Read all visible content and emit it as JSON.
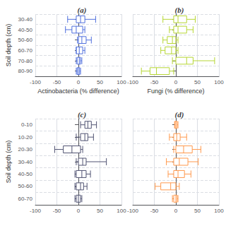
{
  "chart_data": [
    {
      "type": "boxplot",
      "orientation": "horizontal",
      "title": "(a)",
      "xlabel": "Actinobacteria (% difference)",
      "ylabel": "Soil depth (cm)",
      "categories": [
        "30-40",
        "40-50",
        "50-60",
        "60-70",
        "70-80",
        "80-90"
      ],
      "boxes": [
        {
          "whislo": -25,
          "q1": -5,
          "med": 5,
          "q3": 15,
          "whishi": 40
        },
        {
          "whislo": -30,
          "q1": -15,
          "med": -5,
          "q3": 10,
          "whishi": 15
        },
        {
          "whislo": -2,
          "q1": 0,
          "med": 8,
          "q3": 18,
          "whishi": 30
        },
        {
          "whislo": -5,
          "q1": -5,
          "med": 2,
          "q3": 10,
          "whishi": 15
        },
        {
          "whislo": -5,
          "q1": -3,
          "med": 2,
          "q3": 5,
          "whishi": 8
        },
        {
          "whislo": -5,
          "q1": -3,
          "med": 0,
          "q3": 3,
          "whishi": 5
        }
      ],
      "xlim": [
        -100,
        100
      ],
      "xticks": [
        -100,
        -50,
        0,
        50,
        100
      ],
      "grid": true
    },
    {
      "type": "boxplot",
      "orientation": "horizontal",
      "title": "(b)",
      "xlabel": "Fungi (% difference)",
      "categories": [
        "30-40",
        "40-50",
        "50-60",
        "60-70",
        "70-80",
        "80-90"
      ],
      "boxes": [
        {
          "whislo": -30,
          "q1": -5,
          "med": 5,
          "q3": 25,
          "whishi": 45
        },
        {
          "whislo": -15,
          "q1": -5,
          "med": 5,
          "q3": 25,
          "whishi": 40
        },
        {
          "whislo": -30,
          "q1": -20,
          "med": -8,
          "q3": 0,
          "whishi": 5
        },
        {
          "whislo": -35,
          "q1": -25,
          "med": -10,
          "q3": 0,
          "whishi": 5
        },
        {
          "whislo": -8,
          "q1": 0,
          "med": 25,
          "q3": 40,
          "whishi": 90
        },
        {
          "whislo": -80,
          "q1": -60,
          "med": -45,
          "q3": -15,
          "whishi": -5
        }
      ],
      "xlim": [
        -100,
        100
      ],
      "xticks": [
        -100,
        -50,
        0,
        50,
        100
      ],
      "grid": true,
      "tick_labels": "x"
    },
    {
      "type": "boxplot",
      "orientation": "horizontal",
      "title": "(c)",
      "ylabel": "Soil depth (cm)",
      "categories": [
        "0-10",
        "10-20",
        "20-30",
        "30-40",
        "40-50",
        "50-60",
        "60-70"
      ],
      "boxes": [
        {
          "whislo": 5,
          "q1": 15,
          "med": 22,
          "q3": 30,
          "whishi": 42
        },
        {
          "whislo": -5,
          "q1": 5,
          "med": 15,
          "q3": 22,
          "whishi": 35
        },
        {
          "whislo": -55,
          "q1": -35,
          "med": -15,
          "q3": 5,
          "whishi": 10
        },
        {
          "whislo": -5,
          "q1": 0,
          "med": 10,
          "q3": 18,
          "whishi": 65
        },
        {
          "whislo": -8,
          "q1": -5,
          "med": 8,
          "q3": 18,
          "whishi": 28
        },
        {
          "whislo": -8,
          "q1": -5,
          "med": 5,
          "q3": 12,
          "whishi": 20
        },
        {
          "whislo": -8,
          "q1": -5,
          "med": 0,
          "q3": 5,
          "whishi": 8
        }
      ],
      "xlim": [
        -100,
        100
      ],
      "xticks": [
        -100,
        -50,
        0,
        50,
        100
      ],
      "grid": true
    },
    {
      "type": "boxplot",
      "orientation": "horizontal",
      "title": "(d)",
      "categories": [
        "0-10",
        "10-20",
        "20-30",
        "30-40",
        "40-50",
        "50-60",
        "60-70"
      ],
      "boxes": [
        {
          "whislo": -3,
          "q1": -2,
          "med": 0,
          "q3": 3,
          "whishi": 5
        },
        {
          "whislo": -15,
          "q1": -5,
          "med": 2,
          "q3": 10,
          "whishi": 25
        },
        {
          "whislo": -5,
          "q1": 0,
          "med": 18,
          "q3": 38,
          "whishi": 58
        },
        {
          "whislo": -22,
          "q1": -5,
          "med": 8,
          "q3": 28,
          "whishi": 52
        },
        {
          "whislo": -18,
          "q1": -5,
          "med": 5,
          "q3": 20,
          "whishi": 35
        },
        {
          "whislo": -48,
          "q1": -35,
          "med": -12,
          "q3": 0,
          "whishi": 8
        },
        {
          "whislo": -8,
          "q1": -5,
          "med": 0,
          "q3": 3,
          "whishi": 5
        }
      ],
      "xlim": [
        -100,
        100
      ],
      "xticks": [
        -100,
        -50,
        0,
        50,
        100
      ],
      "grid": true,
      "tick_labels": "x"
    }
  ]
}
